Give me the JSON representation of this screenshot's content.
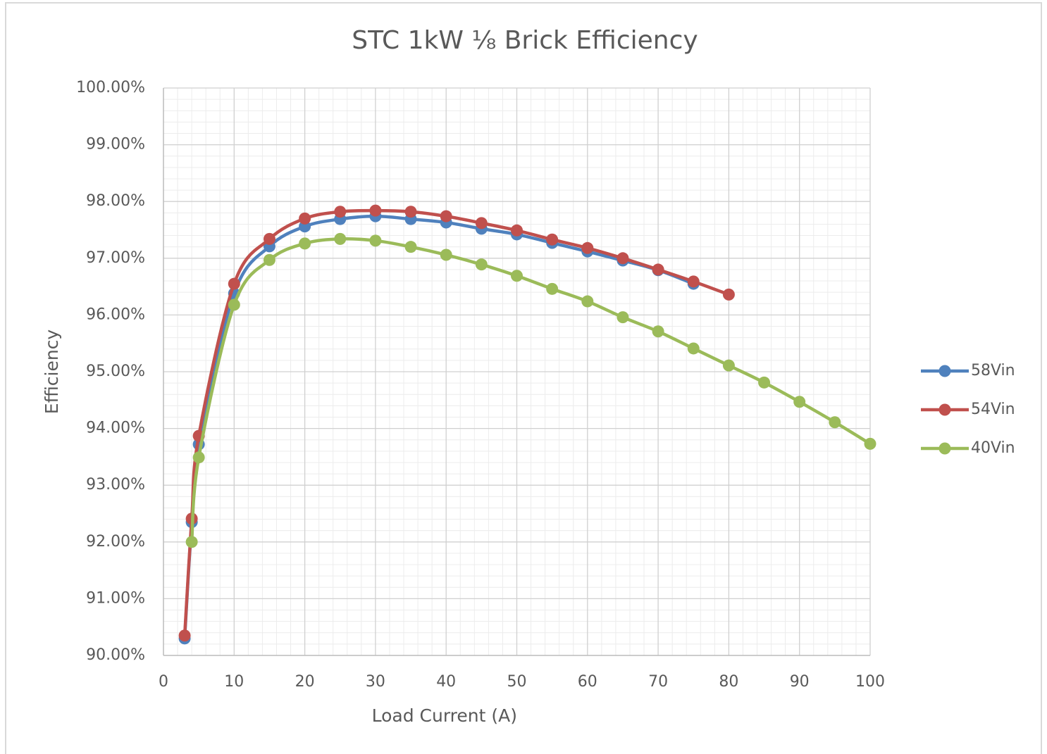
{
  "chart_data": {
    "type": "line",
    "title": "STC 1kW ⅛ Brick Efficiency",
    "x_label": "Load Current (A)",
    "y_label": "Efficiency",
    "xlim": [
      0,
      100
    ],
    "xticks": [
      0,
      10,
      20,
      30,
      40,
      50,
      60,
      70,
      80,
      90,
      100
    ],
    "ylim": [
      90,
      100
    ],
    "yticks": [
      {
        "value": 90,
        "label": "90.00%"
      },
      {
        "value": 91,
        "label": "91.00%"
      },
      {
        "value": 92,
        "label": "92.00%"
      },
      {
        "value": 93,
        "label": "93.00%"
      },
      {
        "value": 94,
        "label": "94.00%"
      },
      {
        "value": 95,
        "label": "95.00%"
      },
      {
        "value": 96,
        "label": "96.00%"
      },
      {
        "value": 97,
        "label": "97.00%"
      },
      {
        "value": 98,
        "label": "98.00%"
      },
      {
        "value": 99,
        "label": "99.00%"
      },
      {
        "value": 100,
        "label": "100.00%"
      }
    ],
    "grid": true,
    "minor_grid": true,
    "smooth": true,
    "legend": "right",
    "series": [
      {
        "name": "58Vin",
        "color": "#4f81bd",
        "x": [
          3,
          4,
          5,
          10,
          15,
          20,
          25,
          30,
          35,
          40,
          45,
          50,
          55,
          60,
          65,
          70,
          75
        ],
        "values": [
          90.3,
          92.35,
          93.72,
          96.38,
          97.21,
          97.56,
          97.69,
          97.74,
          97.69,
          97.63,
          97.52,
          97.42,
          97.27,
          97.12,
          96.96,
          96.79,
          96.55
        ]
      },
      {
        "name": "54Vin",
        "color": "#c0504d",
        "x": [
          3,
          4,
          5,
          10,
          15,
          20,
          25,
          30,
          35,
          40,
          45,
          50,
          55,
          60,
          65,
          70,
          75,
          80
        ],
        "values": [
          90.35,
          92.41,
          93.87,
          96.55,
          97.34,
          97.7,
          97.82,
          97.84,
          97.82,
          97.74,
          97.62,
          97.49,
          97.33,
          97.18,
          97.0,
          96.8,
          96.59,
          96.36
        ]
      },
      {
        "name": "40Vin",
        "color": "#9bbb59",
        "x": [
          4,
          5,
          10,
          15,
          20,
          25,
          30,
          35,
          40,
          45,
          50,
          55,
          60,
          65,
          70,
          75,
          80,
          85,
          90,
          95,
          100
        ],
        "values": [
          92.0,
          93.49,
          96.18,
          96.97,
          97.26,
          97.34,
          97.31,
          97.2,
          97.06,
          96.89,
          96.69,
          96.46,
          96.24,
          95.96,
          95.71,
          95.41,
          95.11,
          94.81,
          94.47,
          94.11,
          93.73
        ]
      }
    ]
  }
}
